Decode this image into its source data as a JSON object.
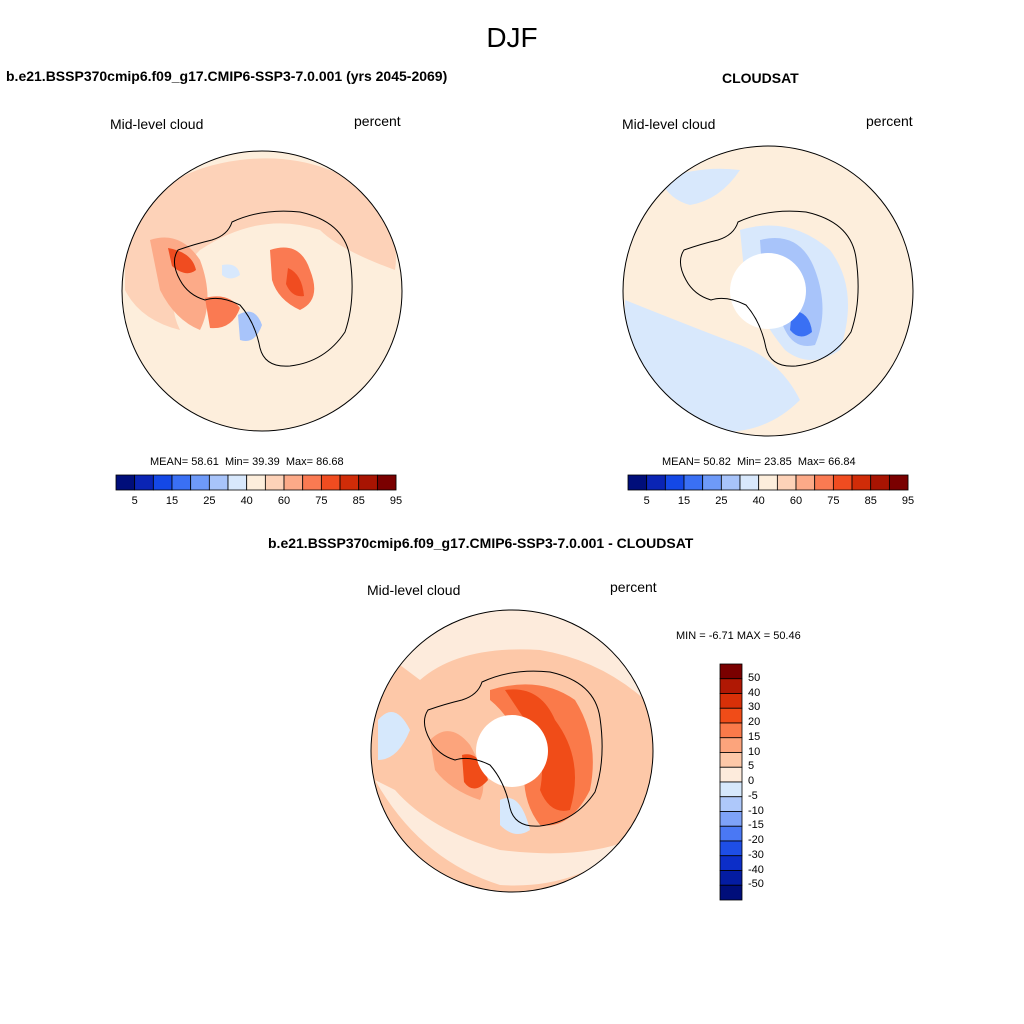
{
  "season_title": "DJF",
  "panels": [
    {
      "id": "model",
      "title": "b.e21.BSSP370cmip6.f09_g17.CMIP6-SSP3-7.0.001 (yrs 2045-2069)",
      "left_label": "Mid-level cloud",
      "right_label": "percent",
      "stats": {
        "mean_label": "MEAN=",
        "mean": "58.61",
        "min_label": "Min=",
        "min": "39.39",
        "max_label": "Max=",
        "max": "86.68"
      }
    },
    {
      "id": "obs",
      "title": "CLOUDSAT",
      "left_label": "Mid-level cloud",
      "right_label": "percent",
      "stats": {
        "mean_label": "MEAN=",
        "mean": "50.82",
        "min_label": "Min=",
        "min": "23.85",
        "max_label": "Max=",
        "max": "66.84"
      }
    },
    {
      "id": "diff",
      "title": "b.e21.BSSP370cmip6.f09_g17.CMIP6-SSP3-7.0.001 - CLOUDSAT",
      "left_label": "Mid-level cloud",
      "right_label": "percent",
      "stats_text": "MIN =  -6.71 MAX =  50.46"
    }
  ],
  "colorbar_abs": {
    "colors": [
      "#000e7a",
      "#0a24b4",
      "#1448e6",
      "#3a70f4",
      "#6e9af8",
      "#a8c4fa",
      "#d8e8fc",
      "#fdeedc",
      "#fdd2b8",
      "#fcaa88",
      "#fa7a52",
      "#f04c20",
      "#d02c08",
      "#a81402",
      "#7a0000"
    ],
    "tick_labels": [
      "5",
      "15",
      "25",
      "40",
      "60",
      "75",
      "85",
      "95"
    ]
  },
  "colorbar_diff": {
    "colors": [
      "#7a0000",
      "#b01804",
      "#d83008",
      "#f04c18",
      "#fa7a4a",
      "#fca47c",
      "#fdc8a8",
      "#fdebdc",
      "#d6e8fc",
      "#aec8fa",
      "#7ea2f8",
      "#4a78f4",
      "#1e4ee6",
      "#0c2ec8",
      "#041ca2",
      "#000e7a"
    ],
    "tick_labels": [
      "50",
      "40",
      "30",
      "20",
      "15",
      "10",
      "5",
      "0",
      "-5",
      "-10",
      "-15",
      "-20",
      "-30",
      "-40",
      "-50"
    ]
  },
  "colors": {
    "land_outline": "#000000",
    "missing": "#ffffff"
  }
}
